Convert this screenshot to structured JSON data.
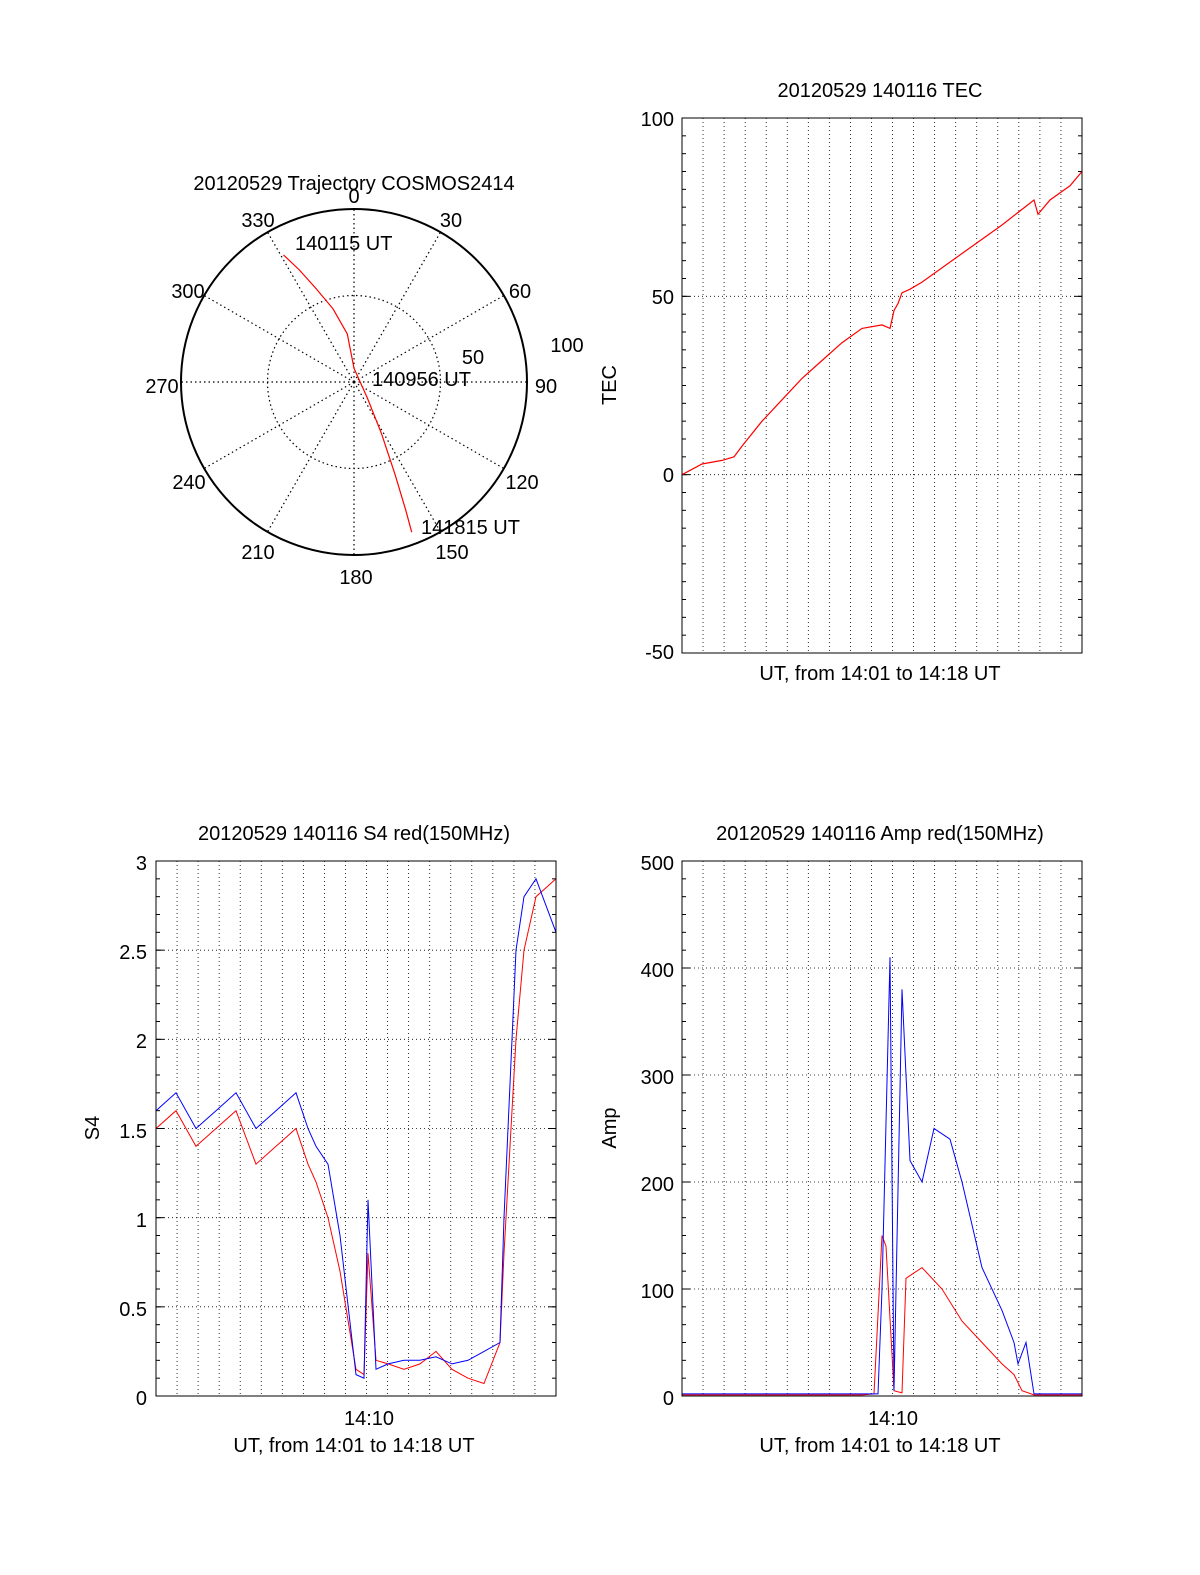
{
  "colors": {
    "red": "#ff0000",
    "blue": "#0000ff",
    "axis": "#000000",
    "grid": "#000000"
  },
  "chart_data": [
    {
      "id": "polar",
      "type": "polar-trajectory",
      "title": "20120529 Trajectory COSMOS2414",
      "angle_ticks": [
        "0",
        "30",
        "60",
        "90",
        "120",
        "150",
        "180",
        "210",
        "240",
        "270",
        "300",
        "330"
      ],
      "radial_ticks": [
        "50",
        "100"
      ],
      "grid": true,
      "trajectory": {
        "color": "red",
        "points": [
          [
            331,
            84
          ],
          [
            334,
            72
          ],
          [
            338,
            58
          ],
          [
            344,
            44
          ],
          [
            352,
            28
          ],
          [
            0,
            8
          ],
          [
            140,
            12
          ],
          [
            152,
            34
          ],
          [
            156,
            58
          ],
          [
            158,
            80
          ],
          [
            159,
            93
          ]
        ]
      },
      "annotations": [
        {
          "text": "140115 UT",
          "anchor": "start"
        },
        {
          "text": "140956 UT",
          "anchor": "center"
        },
        {
          "text": "141815 UT",
          "anchor": "end"
        }
      ]
    },
    {
      "id": "tec",
      "type": "line",
      "title": "20120529 140116 TEC",
      "ylabel": "TEC",
      "xlabel": "UT, from 14:01 to 14:18 UT",
      "ylim": [
        -50,
        100
      ],
      "yticks": [
        "-50",
        "0",
        "50",
        "100"
      ],
      "grid": true,
      "series": [
        {
          "color": "red",
          "x": [
            0.0,
            0.05,
            0.1,
            0.13,
            0.15,
            0.2,
            0.25,
            0.3,
            0.35,
            0.4,
            0.45,
            0.5,
            0.52,
            0.53,
            0.54,
            0.55,
            0.57,
            0.6,
            0.7,
            0.8,
            0.88,
            0.89,
            0.92,
            0.97,
            1.0
          ],
          "y": [
            0,
            3,
            4,
            5,
            8,
            15,
            21,
            27,
            32,
            37,
            41,
            42,
            41,
            46,
            48,
            51,
            52,
            54,
            62,
            70,
            77,
            73,
            77,
            81,
            85
          ]
        }
      ]
    },
    {
      "id": "s4",
      "type": "line",
      "title": "20120529 140116 S4 red(150MHz)",
      "ylabel": "S4",
      "xlabel": "UT, from 14:01 to 14:18 UT",
      "ylim": [
        0,
        3
      ],
      "yticks": [
        "0",
        "0.5",
        "1",
        "1.5",
        "2",
        "2.5",
        "3"
      ],
      "xticks": [
        "14:10"
      ],
      "grid": true,
      "series": [
        {
          "color": "red",
          "x": [
            0.0,
            0.05,
            0.1,
            0.15,
            0.2,
            0.25,
            0.3,
            0.35,
            0.38,
            0.4,
            0.43,
            0.46,
            0.5,
            0.52,
            0.53,
            0.55,
            0.58,
            0.62,
            0.66,
            0.7,
            0.74,
            0.78,
            0.82,
            0.86,
            0.87,
            0.9,
            0.92,
            0.95,
            1.0
          ],
          "y": [
            1.5,
            1.6,
            1.4,
            1.5,
            1.6,
            1.3,
            1.4,
            1.5,
            1.3,
            1.2,
            1.0,
            0.7,
            0.15,
            0.12,
            0.8,
            0.2,
            0.18,
            0.15,
            0.18,
            0.25,
            0.15,
            0.1,
            0.07,
            0.3,
            0.8,
            2.0,
            2.5,
            2.8,
            2.9
          ]
        },
        {
          "color": "blue",
          "x": [
            0.0,
            0.05,
            0.1,
            0.15,
            0.2,
            0.25,
            0.3,
            0.35,
            0.38,
            0.4,
            0.43,
            0.46,
            0.5,
            0.52,
            0.53,
            0.55,
            0.58,
            0.62,
            0.66,
            0.7,
            0.74,
            0.78,
            0.82,
            0.86,
            0.87,
            0.9,
            0.92,
            0.95,
            1.0
          ],
          "y": [
            1.6,
            1.7,
            1.5,
            1.6,
            1.7,
            1.5,
            1.6,
            1.7,
            1.5,
            1.4,
            1.3,
            0.9,
            0.12,
            0.1,
            1.1,
            0.15,
            0.18,
            0.2,
            0.2,
            0.22,
            0.18,
            0.2,
            0.25,
            0.3,
            1.0,
            2.5,
            2.8,
            2.9,
            2.6
          ]
        }
      ]
    },
    {
      "id": "amp",
      "type": "line",
      "title": "20120529 140116 Amp red(150MHz)",
      "ylabel": "Amp",
      "xlabel": "UT, from 14:01 to 14:18 UT",
      "ylim": [
        0,
        500
      ],
      "yticks": [
        "0",
        "100",
        "200",
        "300",
        "400",
        "500"
      ],
      "xticks": [
        "14:10"
      ],
      "grid": true,
      "series": [
        {
          "color": "red",
          "x": [
            0.0,
            0.45,
            0.48,
            0.5,
            0.51,
            0.53,
            0.55,
            0.56,
            0.6,
            0.65,
            0.7,
            0.75,
            0.8,
            0.83,
            0.85,
            0.88,
            1.0
          ],
          "y": [
            1,
            1,
            2,
            150,
            140,
            5,
            3,
            110,
            120,
            100,
            70,
            50,
            30,
            20,
            5,
            1,
            1
          ]
        },
        {
          "color": "blue",
          "x": [
            0.0,
            0.49,
            0.5,
            0.52,
            0.53,
            0.55,
            0.57,
            0.6,
            0.63,
            0.67,
            0.7,
            0.75,
            0.8,
            0.83,
            0.84,
            0.86,
            0.88,
            1.0
          ],
          "y": [
            2,
            2,
            100,
            410,
            5,
            380,
            220,
            200,
            250,
            240,
            200,
            120,
            80,
            50,
            30,
            50,
            2,
            2
          ]
        }
      ]
    }
  ]
}
